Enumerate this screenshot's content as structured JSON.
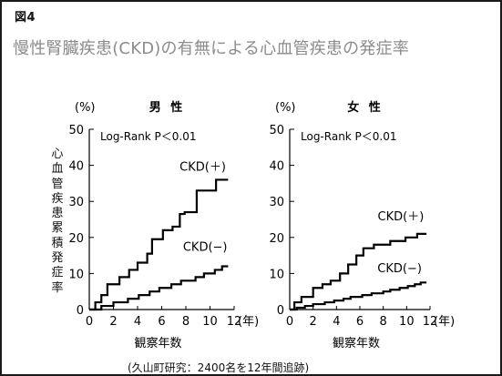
{
  "figure_label": "図4",
  "slide_title": "慢性腎臓疾患(CKD)の有無による心血管疾患の発症率",
  "source_note": "(久山町研究：2400名を12年間追跡)",
  "ylabel_chars": [
    "心",
    "血",
    "管",
    "疾",
    "患",
    "累",
    "積",
    "発",
    "症",
    "率"
  ],
  "colors": {
    "line": "#000000",
    "title_gray": "#8c8c8c",
    "frame": "#1a1a1a"
  },
  "chart_data": [
    {
      "type": "line",
      "title": "男 性",
      "xlabel": "観察年数",
      "ylabel": "心血管疾患累積発症率",
      "y_unit": "(%)",
      "x_unit": "(年)",
      "xlim": [
        0,
        12
      ],
      "ylim": [
        0,
        50
      ],
      "xticks": [
        0,
        2,
        4,
        6,
        8,
        10,
        12
      ],
      "yticks": [
        0,
        10,
        20,
        30,
        40,
        50
      ],
      "annotation": "Log-Rank P＜0.01",
      "grid": false,
      "series": [
        {
          "name": "CKD(＋)",
          "step": true,
          "points": [
            [
              0,
              0
            ],
            [
              0.5,
              2
            ],
            [
              1.0,
              4
            ],
            [
              1.5,
              7
            ],
            [
              2.5,
              9
            ],
            [
              3.3,
              11
            ],
            [
              4.0,
              13
            ],
            [
              4.8,
              15.5
            ],
            [
              5.2,
              19.5
            ],
            [
              6.1,
              22
            ],
            [
              6.9,
              23
            ],
            [
              7.5,
              26.5
            ],
            [
              7.9,
              27
            ],
            [
              8.9,
              33
            ],
            [
              10.5,
              36
            ],
            [
              11.5,
              36
            ]
          ],
          "label_at": [
            9.4,
            38.5
          ]
        },
        {
          "name": "CKD(−)",
          "step": true,
          "points": [
            [
              0,
              0
            ],
            [
              1.0,
              1
            ],
            [
              2.0,
              2
            ],
            [
              3.2,
              3
            ],
            [
              4.1,
              4
            ],
            [
              5.0,
              5
            ],
            [
              5.8,
              6
            ],
            [
              6.8,
              7
            ],
            [
              7.6,
              8
            ],
            [
              8.8,
              9
            ],
            [
              9.5,
              10
            ],
            [
              10.4,
              11
            ],
            [
              11.0,
              12
            ],
            [
              11.5,
              12
            ]
          ],
          "label_at": [
            9.6,
            16.3
          ]
        }
      ]
    },
    {
      "type": "line",
      "title": "女 性",
      "xlabel": "観察年数",
      "ylabel": "",
      "y_unit": "(%)",
      "x_unit": "(年)",
      "xlim": [
        0,
        12
      ],
      "ylim": [
        0,
        50
      ],
      "xticks": [
        0,
        2,
        4,
        6,
        8,
        10,
        12
      ],
      "yticks": [
        0,
        10,
        20,
        30,
        40,
        50
      ],
      "annotation": "Log-Rank P＜0.01",
      "grid": false,
      "series": [
        {
          "name": "CKD(＋)",
          "step": true,
          "points": [
            [
              0,
              0
            ],
            [
              0.4,
              2
            ],
            [
              1.0,
              3.5
            ],
            [
              2.0,
              6
            ],
            [
              2.8,
              7
            ],
            [
              3.5,
              8
            ],
            [
              4.3,
              10
            ],
            [
              5.0,
              12.5
            ],
            [
              5.7,
              15
            ],
            [
              6.3,
              17
            ],
            [
              7.2,
              18
            ],
            [
              8.6,
              19
            ],
            [
              9.9,
              20
            ],
            [
              10.9,
              21
            ],
            [
              11.7,
              21
            ]
          ],
          "label_at": [
            9.5,
            24.8
          ]
        },
        {
          "name": "CKD(−)",
          "step": true,
          "points": [
            [
              0,
              0
            ],
            [
              0.6,
              0.5
            ],
            [
              1.3,
              1
            ],
            [
              2.0,
              1.5
            ],
            [
              3.0,
              2
            ],
            [
              3.8,
              2.5
            ],
            [
              4.6,
              3
            ],
            [
              5.2,
              3.5
            ],
            [
              6.2,
              4
            ],
            [
              7.0,
              4.5
            ],
            [
              8.0,
              5
            ],
            [
              8.6,
              5.5
            ],
            [
              9.4,
              6
            ],
            [
              10.1,
              6.5
            ],
            [
              10.7,
              7
            ],
            [
              11.2,
              7.5
            ],
            [
              11.7,
              7.5
            ]
          ],
          "label_at": [
            9.4,
            10.3
          ]
        }
      ]
    }
  ]
}
